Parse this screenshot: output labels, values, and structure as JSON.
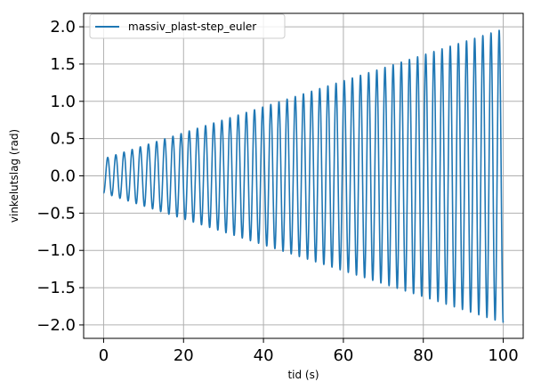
{
  "chart_data": {
    "type": "line",
    "title": "",
    "xlabel": "tid (s)",
    "ylabel": "vinkelutslag (rad)",
    "xlim": [
      -5,
      105
    ],
    "ylim": [
      -2.18,
      2.18
    ],
    "xticks": [
      0,
      20,
      40,
      60,
      80,
      100
    ],
    "yticks": [
      2.0,
      1.5,
      1.0,
      0.5,
      0.0,
      -0.5,
      -1.0,
      -1.5,
      -2.0
    ],
    "xtick_labels": [
      "0",
      "20",
      "40",
      "60",
      "80",
      "100"
    ],
    "ytick_labels": [
      "2.0",
      "1.5",
      "1.0",
      "0.5",
      "0.0",
      "−0.5",
      "−1.0",
      "−1.5",
      "−2.0"
    ],
    "grid": true,
    "legend_position": "top-left",
    "series": [
      {
        "name": "massiv_plast-step_euler",
        "color": "#1f77b4",
        "t_start": 0,
        "t_end": 100,
        "oscillations": 49,
        "amplitude_start": 0.23,
        "amplitude_end": 1.97,
        "initial_value": -0.23,
        "final_value": -1.85
      }
    ]
  }
}
